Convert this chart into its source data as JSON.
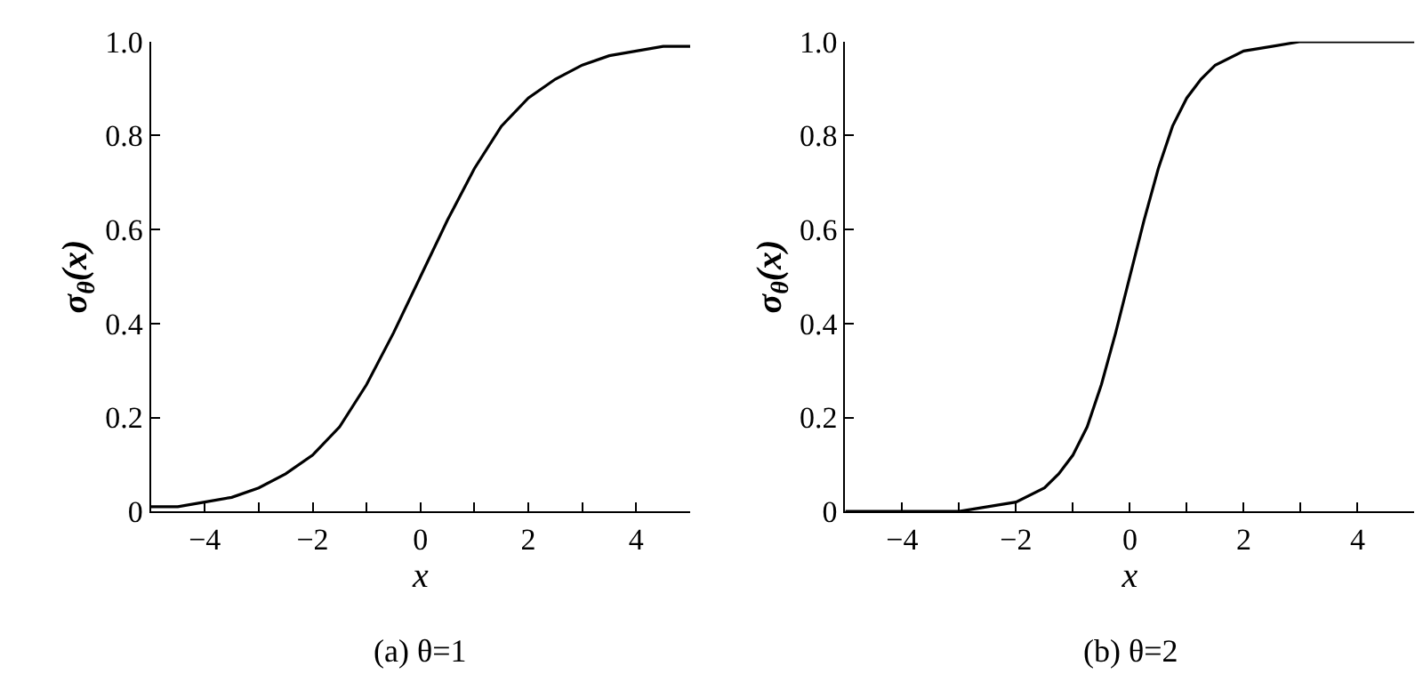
{
  "chart_data": [
    {
      "type": "line",
      "title": "(a) θ=1",
      "xlabel": "x",
      "ylabel": "σ$_{θ}$(x)",
      "xlim": [
        -5,
        5
      ],
      "ylim": [
        0,
        1
      ],
      "xticks": [
        {
          "value": -4,
          "label": "−4"
        },
        {
          "value": -3,
          "label": null
        },
        {
          "value": -2,
          "label": "−2"
        },
        {
          "value": -1,
          "label": null
        },
        0,
        {
          "value": 1,
          "label": null
        },
        2,
        {
          "value": 3,
          "label": null
        },
        4
      ],
      "yticks": [
        0,
        0.2,
        0.4,
        0.6,
        0.8,
        {
          "value": 1,
          "label": "1.0"
        }
      ],
      "marker": "none",
      "line_style": "solid",
      "x": [
        -5,
        -4.5,
        -4,
        -3.5,
        -3,
        -2.5,
        -2,
        -1.5,
        -1,
        -0.5,
        0,
        0.5,
        1,
        1.5,
        2,
        2.5,
        3,
        3.5,
        4,
        4.5,
        5
      ],
      "series": [
        {
          "color": "#000000",
          "values": [
            0.01,
            0.01,
            0.02,
            0.03,
            0.05,
            0.08,
            0.12,
            0.18,
            0.27,
            0.38,
            0.5,
            0.62,
            0.73,
            0.82,
            0.88,
            0.92,
            0.95,
            0.97,
            0.98,
            0.99,
            0.99
          ]
        }
      ]
    },
    {
      "type": "line",
      "title": "(b) θ=2",
      "xlabel": "x",
      "ylabel": "σ$_{θ}$(x)",
      "xlim": [
        -5,
        5
      ],
      "ylim": [
        0,
        1
      ],
      "xticks": [
        {
          "value": -4,
          "label": "−4"
        },
        {
          "value": -3,
          "label": null
        },
        {
          "value": -2,
          "label": "−2"
        },
        {
          "value": -1,
          "label": null
        },
        0,
        {
          "value": 1,
          "label": null
        },
        2,
        {
          "value": 3,
          "label": null
        },
        4
      ],
      "yticks": [
        0,
        0.2,
        0.4,
        0.6,
        0.8,
        {
          "value": 1,
          "label": "1.0"
        }
      ],
      "marker": "none",
      "line_style": "solid",
      "x": [
        -5,
        -4,
        -3,
        -2.5,
        -2,
        -1.5,
        -1.25,
        -1,
        -0.75,
        -0.5,
        -0.25,
        0,
        0.25,
        0.5,
        0.75,
        1,
        1.25,
        1.5,
        2,
        2.5,
        3,
        4,
        5
      ],
      "series": [
        {
          "color": "#000000",
          "values": [
            0,
            0,
            0,
            0.01,
            0.02,
            0.05,
            0.08,
            0.12,
            0.18,
            0.27,
            0.38,
            0.5,
            0.62,
            0.73,
            0.82,
            0.88,
            0.92,
            0.95,
            0.98,
            0.99,
            1,
            1,
            1
          ]
        }
      ]
    }
  ]
}
